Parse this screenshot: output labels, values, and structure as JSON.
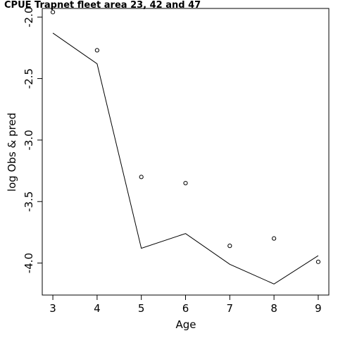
{
  "chart_data": {
    "type": "line",
    "title": "CPUE Trapnet fleet area 23, 42 and 47",
    "xlabel": "Age",
    "ylabel": "log Obs & pred",
    "xlim": [
      2.76,
      9.24
    ],
    "ylim": [
      -4.26,
      -1.93
    ],
    "x_ticks": [
      3,
      4,
      5,
      6,
      7,
      8,
      9
    ],
    "x_tick_labels": [
      "3",
      "4",
      "5",
      "6",
      "7",
      "8",
      "9"
    ],
    "y_ticks": [
      -2.0,
      -2.5,
      -3.0,
      -3.5,
      -4.0
    ],
    "y_tick_labels": [
      "-2.0",
      "-2.5",
      "-3.0",
      "-3.5",
      "-4.0"
    ],
    "grid": false,
    "legend": "none",
    "series": [
      {
        "style": "points",
        "x": [
          3,
          4,
          5,
          6,
          7,
          8,
          9
        ],
        "y": [
          -1.96,
          -2.27,
          -3.3,
          -3.35,
          -3.86,
          -3.8,
          -3.99
        ]
      },
      {
        "style": "line",
        "x": [
          3,
          4,
          5,
          6,
          7,
          8,
          9
        ],
        "y": [
          -2.13,
          -2.38,
          -3.88,
          -3.76,
          -4.01,
          -4.17,
          -3.94
        ]
      }
    ]
  }
}
